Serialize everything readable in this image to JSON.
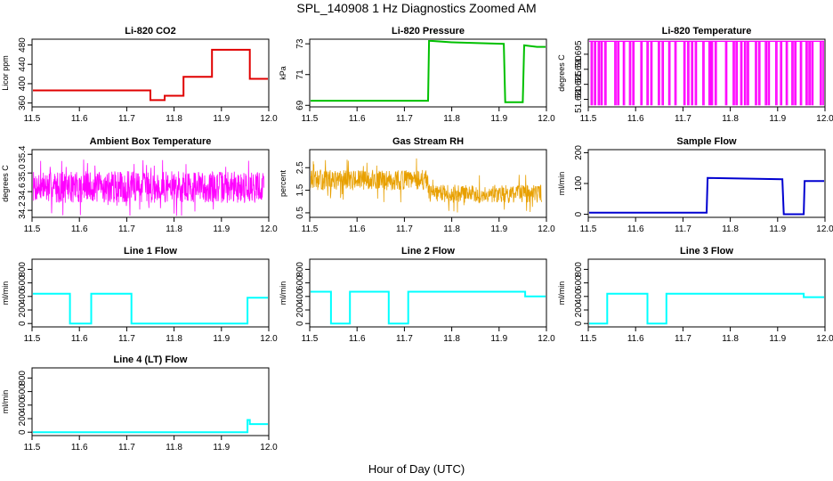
{
  "figure_title": "SPL_140908 1 Hz Diagnostics Zoomed AM",
  "x_axis_label": "Hour of Day (UTC)",
  "chart_data": [
    {
      "id": "li820-co2",
      "type": "line",
      "title": "Li-820 CO2",
      "ylabel": "Licor ppm",
      "color": "#e00000",
      "xlim": [
        11.5,
        12.0
      ],
      "ylim": [
        352,
        492
      ],
      "xticks": [
        "11.5",
        "11.6",
        "11.7",
        "11.8",
        "11.9",
        "12.0"
      ],
      "yticks": [
        "360",
        "400",
        "440",
        "480"
      ],
      "series": [
        {
          "x": [
            11.5,
            11.75,
            11.75,
            11.78,
            11.78,
            11.82,
            11.82,
            11.88,
            11.88,
            11.96,
            11.96,
            12.0
          ],
          "y": [
            386,
            386,
            366,
            366,
            375,
            375,
            414,
            414,
            470,
            470,
            410,
            410
          ]
        }
      ]
    },
    {
      "id": "li820-pressure",
      "type": "line",
      "title": "Li-820 Pressure",
      "ylabel": "kPa",
      "color": "#00c000",
      "xlim": [
        11.5,
        12.0
      ],
      "ylim": [
        68.9,
        73.3
      ],
      "xticks": [
        "11.5",
        "11.6",
        "11.7",
        "11.8",
        "11.9",
        "12.0"
      ],
      "yticks": [
        "69",
        "71",
        "73"
      ],
      "series": [
        {
          "x": [
            11.5,
            11.75,
            11.752,
            11.8,
            11.91,
            11.913,
            11.95,
            11.953,
            11.98,
            12.0
          ],
          "y": [
            69.3,
            69.3,
            73.2,
            73.1,
            73.0,
            69.2,
            69.2,
            72.9,
            72.8,
            72.8
          ]
        }
      ]
    },
    {
      "id": "li820-temperature",
      "type": "line",
      "title": "Li-820 Temperature",
      "ylabel": "degrees C",
      "color": "#ff00ff",
      "xlim": [
        11.5,
        12.0
      ],
      "ylim": [
        51.6775,
        51.7
      ],
      "xticks": [
        "11.5",
        "11.6",
        "11.7",
        "11.8",
        "11.9",
        "12.0"
      ],
      "yticks": [
        "51.680",
        "51.685",
        "51.690",
        "51.695"
      ],
      "series": [
        {
          "base": 51.6993,
          "low": 51.678,
          "dropouts": [
            11.506,
            11.513,
            11.521,
            11.527,
            11.535,
            11.556,
            11.562,
            11.574,
            11.587,
            11.594,
            11.611,
            11.624,
            11.632,
            11.648,
            11.656,
            11.67,
            11.683,
            11.702,
            11.71,
            11.718,
            11.726,
            11.742,
            11.755,
            11.76,
            11.768,
            11.79,
            11.806,
            11.812,
            11.822,
            11.83,
            11.836,
            11.853,
            11.86,
            11.874,
            11.88,
            11.896,
            11.906,
            11.918,
            11.93,
            11.936,
            11.948,
            11.96,
            11.966,
            11.972,
            11.99,
            11.996
          ]
        }
      ]
    },
    {
      "id": "ambient-box-temperature",
      "type": "line",
      "title": "Ambient Box Temperature",
      "ylabel": "degrees C",
      "color": "#ff00ff",
      "xlim": [
        11.5,
        12.0
      ],
      "ylim": [
        34.05,
        35.5
      ],
      "xticks": [
        "11.5",
        "11.6",
        "11.7",
        "11.8",
        "11.9",
        "12.0"
      ],
      "yticks": [
        "34.2",
        "34.6",
        "35.0",
        "35.4"
      ],
      "series": [
        {
          "noise": true,
          "seed": 7,
          "segments": [
            {
              "x0": 11.5,
              "x1": 11.99,
              "center": 34.7,
              "amp": 0.34,
              "spike": 0.62
            }
          ]
        }
      ]
    },
    {
      "id": "gas-stream-rh",
      "type": "line",
      "title": "Gas Stream RH",
      "ylabel": "percent",
      "color": "#e8a000",
      "xlim": [
        11.5,
        12.0
      ],
      "ylim": [
        0.3,
        3.3
      ],
      "xticks": [
        "11.5",
        "11.6",
        "11.7",
        "11.8",
        "11.9",
        "12.0"
      ],
      "yticks": [
        "0.5",
        "1.5",
        "2.5"
      ],
      "series": [
        {
          "noise": true,
          "seed": 13,
          "segments": [
            {
              "x0": 11.5,
              "x1": 11.75,
              "center": 1.95,
              "amp": 0.45,
              "spike": 1.0
            },
            {
              "x0": 11.75,
              "x1": 11.99,
              "center": 1.35,
              "amp": 0.4,
              "spike": 0.85
            }
          ]
        }
      ]
    },
    {
      "id": "sample-flow",
      "type": "line",
      "title": "Sample Flow",
      "ylabel": "ml/min",
      "color": "#0000d0",
      "xlim": [
        11.5,
        12.0
      ],
      "ylim": [
        -10,
        210
      ],
      "xticks": [
        "11.5",
        "11.6",
        "11.7",
        "11.8",
        "11.9",
        "12.0"
      ],
      "yticks": [
        "0",
        "100",
        "200"
      ],
      "series": [
        {
          "x": [
            11.5,
            11.75,
            11.752,
            11.91,
            11.913,
            11.955,
            11.957,
            12.0
          ],
          "y": [
            5,
            5,
            118,
            114,
            0,
            0,
            108,
            108
          ]
        }
      ]
    },
    {
      "id": "line-1-flow",
      "type": "line",
      "title": "Line 1 Flow",
      "ylabel": "ml/min",
      "color": "#00ffff",
      "xlim": [
        11.5,
        12.0
      ],
      "ylim": [
        -50,
        950
      ],
      "xticks": [
        "11.5",
        "11.6",
        "11.7",
        "11.8",
        "11.9",
        "12.0"
      ],
      "yticks": [
        "0",
        "200",
        "400",
        "600",
        "800"
      ],
      "series": [
        {
          "x": [
            11.5,
            11.58,
            11.58,
            11.625,
            11.625,
            11.71,
            11.71,
            11.955,
            11.955,
            12.0
          ],
          "y": [
            440,
            440,
            0,
            0,
            440,
            440,
            0,
            0,
            380,
            380
          ]
        }
      ]
    },
    {
      "id": "line-2-flow",
      "type": "line",
      "title": "Line 2 Flow",
      "ylabel": "ml/min",
      "color": "#00ffff",
      "xlim": [
        11.5,
        12.0
      ],
      "ylim": [
        -50,
        950
      ],
      "xticks": [
        "11.5",
        "11.6",
        "11.7",
        "11.8",
        "11.9",
        "12.0"
      ],
      "yticks": [
        "0",
        "200",
        "400",
        "600",
        "800"
      ],
      "series": [
        {
          "x": [
            11.5,
            11.545,
            11.545,
            11.585,
            11.585,
            11.667,
            11.667,
            11.708,
            11.708,
            11.955,
            11.955,
            12.0
          ],
          "y": [
            470,
            470,
            0,
            0,
            470,
            470,
            0,
            0,
            470,
            470,
            400,
            400
          ]
        }
      ]
    },
    {
      "id": "line-3-flow",
      "type": "line",
      "title": "Line 3 Flow",
      "ylabel": "ml/min",
      "color": "#00ffff",
      "xlim": [
        11.5,
        12.0
      ],
      "ylim": [
        -50,
        950
      ],
      "xticks": [
        "11.5",
        "11.6",
        "11.7",
        "11.8",
        "11.9",
        "12.0"
      ],
      "yticks": [
        "0",
        "200",
        "400",
        "600",
        "800"
      ],
      "series": [
        {
          "x": [
            11.5,
            11.54,
            11.54,
            11.625,
            11.625,
            11.665,
            11.665,
            11.955,
            11.955,
            12.0
          ],
          "y": [
            0,
            0,
            440,
            440,
            0,
            0,
            440,
            440,
            390,
            390
          ]
        }
      ]
    },
    {
      "id": "line-4-lt-flow",
      "type": "line",
      "title": "Line 4 (LT) Flow",
      "ylabel": "ml/min",
      "color": "#00ffff",
      "xlim": [
        11.5,
        12.0
      ],
      "ylim": [
        -50,
        950
      ],
      "xticks": [
        "11.5",
        "11.6",
        "11.7",
        "11.8",
        "11.9",
        "12.0"
      ],
      "yticks": [
        "0",
        "200",
        "400",
        "600",
        "800"
      ],
      "series": [
        {
          "x": [
            11.5,
            11.955,
            11.955,
            11.96,
            11.96,
            12.0
          ],
          "y": [
            0,
            0,
            180,
            180,
            120,
            120
          ]
        }
      ]
    }
  ]
}
